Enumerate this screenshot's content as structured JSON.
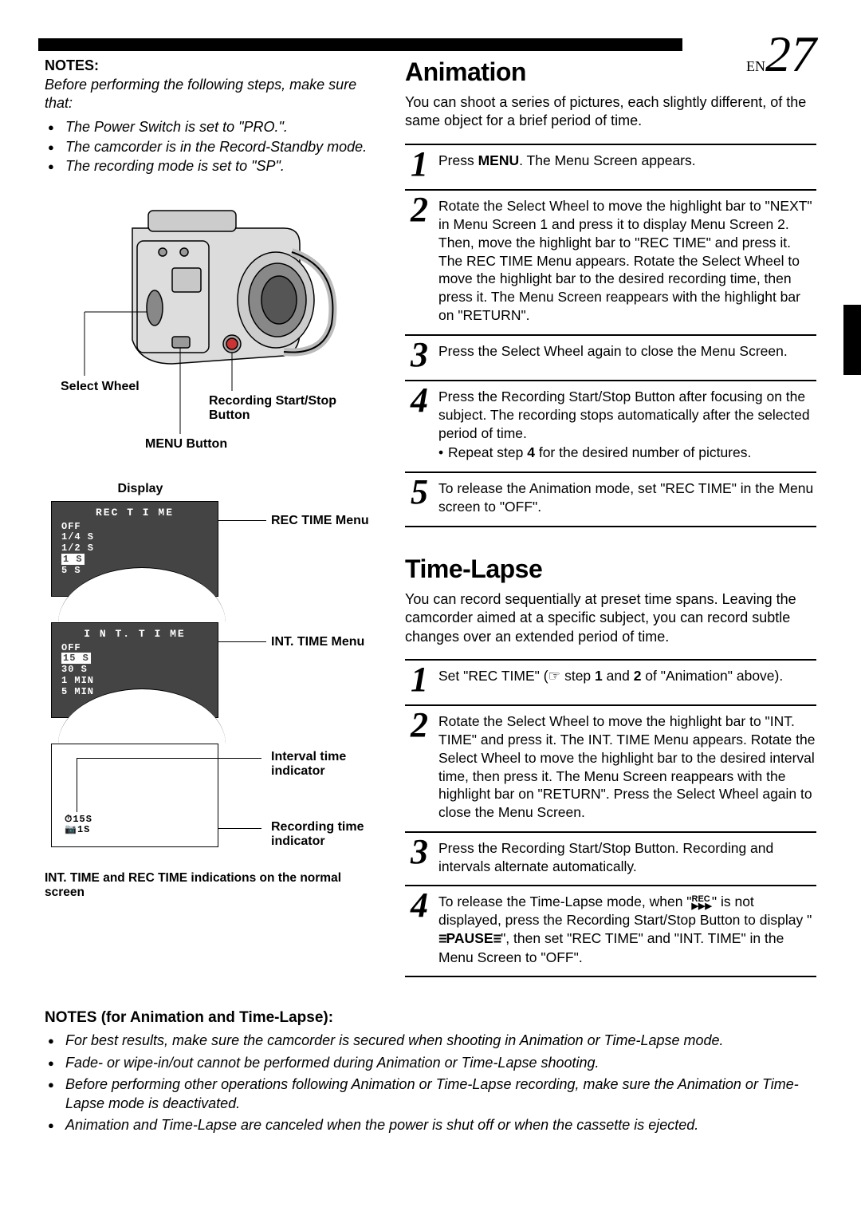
{
  "page_number": {
    "prefix": "EN",
    "number": "27"
  },
  "left": {
    "notes_heading": "NOTES:",
    "notes_intro": "Before performing the following steps, make sure that:",
    "notes_bullets": [
      "The Power Switch is set to \"PRO.\".",
      "The camcorder is in the Record-Standby mode.",
      "The recording mode is set to \"SP\"."
    ],
    "fig": {
      "select_wheel": "Select Wheel",
      "recording_btn": "Recording Start/Stop Button",
      "menu_btn": "MENU Button"
    },
    "display_label": "Display",
    "rec_time": {
      "menu_label": "REC TIME Menu",
      "title": "REC  T I ME",
      "items": [
        "OFF",
        "1/4  S",
        "1/2  S",
        "1  S",
        "5  S"
      ],
      "highlight_index": 3
    },
    "int_time": {
      "menu_label": "INT. TIME Menu",
      "title": "I N T.   T I ME",
      "items": [
        "OFF",
        "15  S",
        "30  S",
        "1  MIN",
        "5  MIN"
      ],
      "highlight_index": 1
    },
    "indicators": {
      "line1": "⏱15S",
      "line2": "📷1S",
      "label1": "Interval time indicator",
      "label2": "Recording time indicator",
      "caption": "INT. TIME and REC TIME indications on the normal screen"
    }
  },
  "right": {
    "animation": {
      "title": "Animation",
      "desc": "You can shoot a series of pictures, each slightly different, of the same object for a brief period of time.",
      "steps": [
        {
          "n": "1",
          "html": "Press <b>MENU</b>. The Menu Screen appears."
        },
        {
          "n": "2",
          "html": "Rotate the Select Wheel to move the highlight bar to \"NEXT\" in Menu Screen 1 and press it to display Menu Screen 2. Then, move the highlight  bar to \"REC TIME\" and press it. The REC TIME Menu appears. Rotate the Select Wheel to move the highlight bar to the desired recording time, then press it. The Menu Screen reappears with the highlight bar on \"RETURN\"."
        },
        {
          "n": "3",
          "html": "Press the Select Wheel again to close the Menu Screen."
        },
        {
          "n": "4",
          "html": "Press the Recording Start/Stop Button after focusing on the subject. The recording stops automatically after the selected period of time.<div class=\"sub\">Repeat step <b>4</b> for the desired number of pictures.</div>"
        },
        {
          "n": "5",
          "html": "To release the Animation mode, set \"REC TIME\" in the Menu screen to \"OFF\"."
        }
      ]
    },
    "timelapse": {
      "title": "Time-Lapse",
      "desc": "You can record sequentially at preset time spans. Leaving the camcorder aimed at a specific subject, you can record subtle changes over an extended period of time.",
      "steps": [
        {
          "n": "1",
          "html": "Set \"REC TIME\" (☞ step <b>1</b> and <b>2</b> of \"Animation\" above)."
        },
        {
          "n": "2",
          "html": "Rotate the Select Wheel to move the highlight bar to \"INT. TIME\" and press it. The INT. TIME Menu appears. Rotate the Select Wheel to move the highlight bar to the desired interval time, then press it. The Menu Screen reappears with the highlight bar on \"RETURN\". Press the Select Wheel again to close the Menu Screen."
        },
        {
          "n": "3",
          "html": "Press the Recording Start/Stop Button. Recording and intervals alternate automatically."
        },
        {
          "n": "4",
          "html": "To release the Time-Lapse mode, when \"<span class='rec-icon'>REC<br>▶▶▶</span>\" is not displayed, press the Recording Start/Stop Button to display  \"<span class='pause-icon'>≡</span><b>PAUSE</b><span class='pause-icon'>≡</span>\", then set  \"REC TIME\" and \"INT. TIME\" in the Menu Screen to \"OFF\"."
        }
      ]
    }
  },
  "bottom_notes": {
    "heading": "NOTES (for Animation and Time-Lapse):",
    "bullets": [
      "For best results, make sure the camcorder is secured when shooting in Animation or Time-Lapse mode.",
      "Fade- or wipe-in/out cannot be performed during Animation or Time-Lapse shooting.",
      "Before performing other operations following Animation or Time-Lapse recording, make sure the Animation or Time-Lapse mode is deactivated.",
      "Animation and Time-Lapse are canceled when the power is shut off or when the cassette is ejected."
    ]
  }
}
